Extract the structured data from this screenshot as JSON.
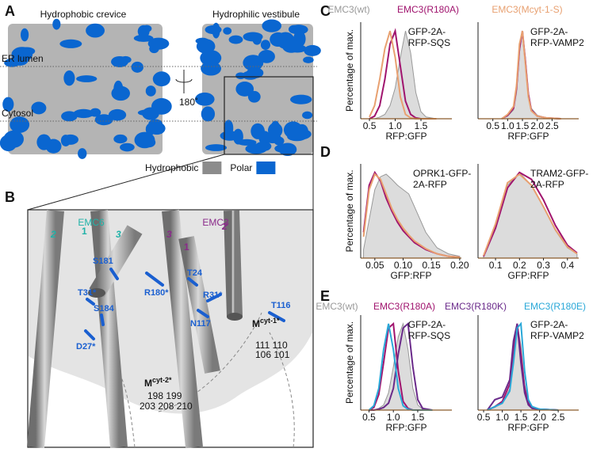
{
  "panels": {
    "A": {
      "label": "A",
      "left_title": "Hydrophobic crevice",
      "right_title": "Hydrophilic vestibule",
      "er_lumen": "ER lumen",
      "cytosol": "Cytosol",
      "rotation": "180˚",
      "legend": [
        {
          "name": "Hydrophobic",
          "color": "#8c8c8c"
        },
        {
          "name": "Polar",
          "color": "#0a66d0"
        }
      ]
    },
    "B": {
      "label": "B",
      "emc6": "EMC6",
      "emc3": "EMC3",
      "emc6_helices": [
        "2",
        "1",
        "3"
      ],
      "emc3_helices": [
        "3",
        "1",
        "2"
      ],
      "residues": [
        "S181",
        "T31*",
        "S184",
        "D27*",
        "R180*",
        "T24",
        "R31*",
        "N117",
        "T116"
      ],
      "mcyt1": {
        "label": "M",
        "sup": "cyt-1*",
        "numbers": [
          "111 110",
          "106 101"
        ]
      },
      "mcyt2": {
        "label": "M",
        "sup": "cyt-2*",
        "numbers": [
          "198 199",
          "203 208 210"
        ]
      }
    },
    "C": {
      "label": "C"
    },
    "D": {
      "label": "D"
    },
    "E": {
      "label": "E"
    }
  },
  "chart_data": [
    {
      "type": "line",
      "ylabel": "Percentage of max.",
      "xlabel": "RFP:GFP",
      "annotation": [
        "GFP-2A-",
        "RFP-SQS"
      ],
      "xlim": [
        0.33,
        2.1
      ],
      "ylim": [
        0,
        110
      ],
      "xticks": [
        0.5,
        {
          "value": 1,
          "label": "1.0"
        },
        1.5
      ],
      "x": [
        0.5,
        0.6,
        0.7,
        0.8,
        0.9,
        1.0,
        1.1,
        1.2,
        1.3,
        1.4,
        1.5,
        1.6,
        1.8
      ],
      "series": [
        {
          "name": "EMC3(wt)",
          "color": "#999999",
          "style": "area",
          "values": [
            0,
            0,
            2,
            5,
            15,
            35,
            70,
            100,
            75,
            30,
            8,
            2,
            0
          ]
        },
        {
          "name": "EMC3(R180A)",
          "color": "#a0146e",
          "values": [
            0,
            3,
            15,
            45,
            85,
            100,
            60,
            20,
            5,
            1,
            0,
            0,
            0
          ]
        },
        {
          "name": "EMC3(Mcyt-1-S)",
          "color": "#e8a070",
          "values": [
            2,
            15,
            45,
            80,
            100,
            70,
            25,
            5,
            1,
            0,
            0,
            0,
            0
          ]
        }
      ]
    },
    {
      "type": "line",
      "xlabel": "RFP:GFP",
      "annotation": [
        "GFP-2A-",
        "RFP-VAMP2"
      ],
      "xlim": [
        0,
        3.4
      ],
      "ylim": [
        0,
        110
      ],
      "xticks": [
        0.5,
        {
          "value": 1,
          "label": "1.0"
        },
        1.5,
        {
          "value": 2,
          "label": "2.0"
        },
        2.5
      ],
      "x": [
        0.8,
        1.0,
        1.2,
        1.3,
        1.4,
        1.5,
        1.6,
        1.7,
        1.8,
        2.0,
        2.3,
        2.8
      ],
      "series": [
        {
          "color": "#999999",
          "style": "area",
          "values": [
            0,
            3,
            10,
            30,
            75,
            100,
            70,
            30,
            12,
            4,
            1,
            0
          ]
        },
        {
          "color": "#a0146e",
          "values": [
            0,
            4,
            12,
            35,
            80,
            100,
            65,
            28,
            10,
            3,
            1,
            0
          ]
        },
        {
          "color": "#e8a070",
          "values": [
            0,
            5,
            14,
            38,
            85,
            100,
            62,
            25,
            9,
            3,
            1,
            0
          ]
        }
      ]
    },
    {
      "type": "line",
      "ylabel": "Percentage of max.",
      "xlabel": "GFP:RFP",
      "annotation": [
        "OPRK1-GFP-",
        "2A-RFP"
      ],
      "xlim": [
        0.025,
        0.203
      ],
      "ylim": [
        0,
        110
      ],
      "xticks": [
        0.05,
        {
          "value": 0.1,
          "label": "0.10"
        },
        0.15,
        {
          "value": 0.2,
          "label": "0.20"
        }
      ],
      "x": [
        0.03,
        0.04,
        0.05,
        0.06,
        0.07,
        0.08,
        0.09,
        0.1,
        0.11,
        0.12,
        0.14,
        0.16,
        0.18,
        0.2
      ],
      "series": [
        {
          "color": "#999999",
          "style": "area",
          "values": [
            10,
            45,
            80,
            95,
            98,
            92,
            85,
            80,
            75,
            60,
            30,
            12,
            5,
            2
          ]
        },
        {
          "color": "#a0146e",
          "values": [
            30,
            85,
            100,
            90,
            70,
            55,
            42,
            32,
            25,
            18,
            10,
            5,
            2,
            1
          ]
        },
        {
          "color": "#e8a070",
          "values": [
            25,
            80,
            98,
            92,
            75,
            58,
            45,
            35,
            27,
            20,
            11,
            5,
            2,
            1
          ]
        }
      ]
    },
    {
      "type": "line",
      "xlabel": "GFP:RFP",
      "annotation": [
        "TRAM2-GFP-",
        "2A-RFP"
      ],
      "xlim": [
        0.027,
        0.447
      ],
      "ylim": [
        0,
        110
      ],
      "xticks": [
        0.1,
        0.2,
        0.3,
        0.4
      ],
      "x": [
        0.05,
        0.1,
        0.15,
        0.2,
        0.25,
        0.3,
        0.35,
        0.4,
        0.44
      ],
      "series": [
        {
          "color": "#999999",
          "style": "area",
          "values": [
            3,
            40,
            85,
            100,
            85,
            60,
            32,
            12,
            5
          ]
        },
        {
          "color": "#a0146e",
          "values": [
            2,
            35,
            82,
            100,
            92,
            68,
            38,
            15,
            6
          ]
        },
        {
          "color": "#e8a070",
          "values": [
            3,
            40,
            88,
            98,
            85,
            60,
            33,
            13,
            5
          ]
        }
      ]
    },
    {
      "type": "line",
      "ylabel": "Percentage of max.",
      "xlabel": "RFP:GFP",
      "annotation": [
        "GFP-2A-",
        "RFP-SQS"
      ],
      "xlim": [
        0.33,
        2.2
      ],
      "ylim": [
        0,
        110
      ],
      "xticks": [
        0.5,
        {
          "value": 1,
          "label": "1.0"
        },
        1.5
      ],
      "x": [
        0.5,
        0.6,
        0.7,
        0.8,
        0.9,
        1.0,
        1.1,
        1.2,
        1.3,
        1.4,
        1.5,
        1.6,
        1.8
      ],
      "series": [
        {
          "name": "EMC3(wt)",
          "color": "#999999",
          "style": "area",
          "values": [
            0,
            0,
            2,
            6,
            20,
            50,
            85,
            100,
            70,
            25,
            6,
            1,
            0
          ]
        },
        {
          "name": "EMC3(R180A)",
          "color": "#a0146e",
          "values": [
            0,
            3,
            18,
            55,
            95,
            100,
            45,
            10,
            2,
            0,
            0,
            0,
            0
          ]
        },
        {
          "name": "EMC3(R180K)",
          "color": "#6a2a8a",
          "values": [
            0,
            0,
            1,
            3,
            8,
            25,
            65,
            95,
            100,
            50,
            12,
            2,
            0
          ]
        },
        {
          "name": "EMC3(R180E)",
          "color": "#2aa8d8",
          "values": [
            0,
            5,
            25,
            70,
            100,
            70,
            25,
            5,
            1,
            0,
            0,
            0,
            0
          ]
        }
      ]
    },
    {
      "type": "line",
      "xlabel": "RFP:GFP",
      "annotation": [
        "GFP-2A-",
        "RFP-VAMP2"
      ],
      "xlim": [
        0.35,
        3.05
      ],
      "ylim": [
        0,
        110
      ],
      "xticks": [
        0.5,
        {
          "value": 1,
          "label": "1.0"
        },
        1.5,
        {
          "value": 2,
          "label": "2.0"
        },
        2.5
      ],
      "x": [
        0.6,
        0.8,
        1.0,
        1.2,
        1.3,
        1.4,
        1.5,
        1.6,
        1.7,
        1.8,
        2.0,
        2.5
      ],
      "series": [
        {
          "color": "#999999",
          "style": "area",
          "values": [
            0,
            3,
            8,
            25,
            60,
            100,
            75,
            30,
            10,
            4,
            1,
            0
          ]
        },
        {
          "color": "#a0146e",
          "values": [
            0,
            4,
            10,
            30,
            70,
            100,
            65,
            25,
            8,
            3,
            1,
            0
          ]
        },
        {
          "color": "#6a2a8a",
          "values": [
            0,
            12,
            15,
            35,
            80,
            100,
            55,
            20,
            6,
            2,
            1,
            0
          ]
        },
        {
          "color": "#2aa8d8",
          "values": [
            0,
            4,
            8,
            22,
            55,
            95,
            100,
            45,
            12,
            4,
            1,
            0
          ]
        }
      ]
    }
  ]
}
